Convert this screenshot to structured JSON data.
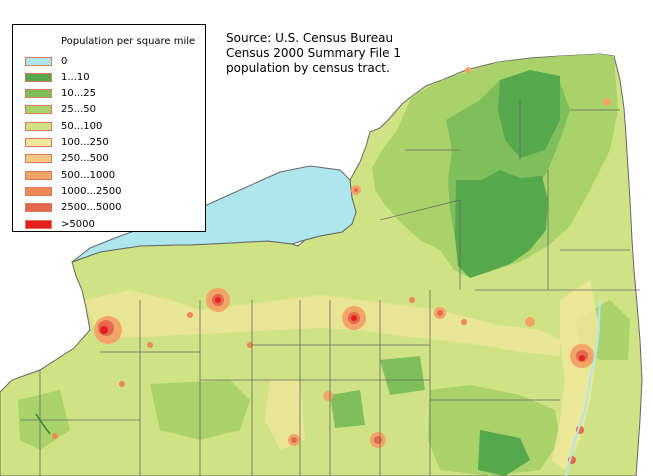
{
  "legend": {
    "title": "Population per square mile",
    "items": [
      {
        "label": "0",
        "color": "#aee6ee"
      },
      {
        "label": "1...10",
        "color": "#55a84c"
      },
      {
        "label": "10...25",
        "color": "#7fbf5a"
      },
      {
        "label": "25...50",
        "color": "#a9d26b"
      },
      {
        "label": "50...100",
        "color": "#cfe384"
      },
      {
        "label": "100...250",
        "color": "#f2e79b"
      },
      {
        "label": "250...500",
        "color": "#f6c883"
      },
      {
        "label": "500...1000",
        "color": "#f3a466"
      },
      {
        "label": "1000...2500",
        "color": "#ec8756"
      },
      {
        "label": "2500...5000",
        "color": "#e4684d"
      },
      {
        "label": ">5000",
        "color": "#e61e1e"
      }
    ]
  },
  "source": {
    "lines": [
      "Source: U.S. Census Bureau",
      "Census 2000 Summary File 1",
      "population by census tract."
    ]
  },
  "colors": {
    "water": "#aee6ee",
    "boundary": "#666666",
    "tract": "#d8d8d8"
  }
}
